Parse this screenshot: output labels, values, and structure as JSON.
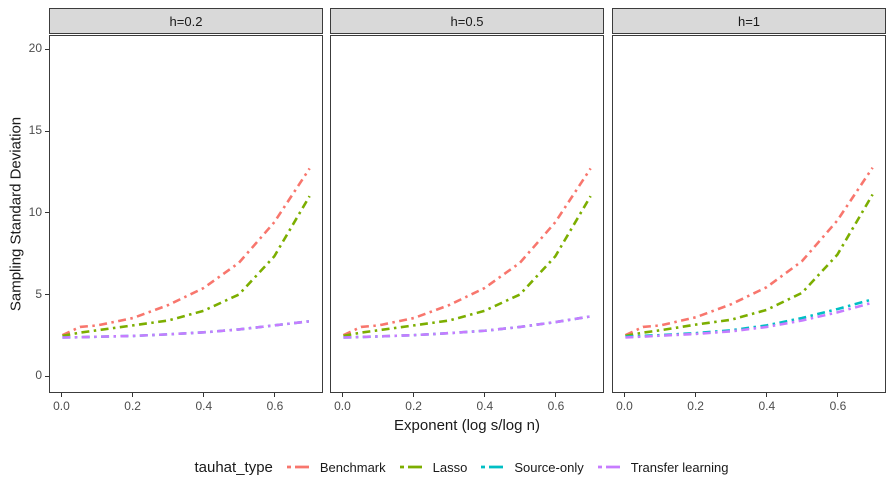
{
  "chart_data": {
    "type": "line",
    "title": "",
    "xlabel": "Exponent (log s/log n)",
    "ylabel": "Sampling Standard Deviation",
    "legend_title": "tauhat_type",
    "legend_position": "bottom",
    "line_style": "dash-dot",
    "grid": false,
    "strip_fill": "#D9D9D9",
    "panel_border": "#3C3C3C",
    "axis_text_color": "#4D4D4D",
    "xlim": [
      -0.035,
      0.735
    ],
    "ylim": [
      -1.05,
      20.85
    ],
    "x_ticks": {
      "values": [
        0,
        0.2,
        0.4,
        0.6
      ],
      "labels": [
        "0.0",
        "0.2",
        "0.4",
        "0.6"
      ]
    },
    "y_ticks": {
      "values": [
        0,
        5,
        10,
        15,
        20
      ],
      "labels": [
        "0",
        "5",
        "10",
        "15",
        "20"
      ]
    },
    "x": [
      0,
      0.05,
      0.1,
      0.2,
      0.3,
      0.4,
      0.5,
      0.6,
      0.7
    ],
    "facets": [
      {
        "label": "h=0.2",
        "series": [
          {
            "name": "Benchmark",
            "color": "#F8766D",
            "values": [
              2.45,
              2.95,
              3.05,
              3.5,
              4.3,
              5.35,
              6.9,
              9.4,
              12.7
            ]
          },
          {
            "name": "Lasso",
            "color": "#7CAE00",
            "values": [
              2.4,
              2.6,
              2.75,
              3.05,
              3.35,
              3.95,
              4.95,
              7.3,
              11.0
            ]
          },
          {
            "name": "Source-only",
            "color": "#00BFC4",
            "values": [
              2.3,
              2.32,
              2.35,
              2.4,
              2.5,
              2.62,
              2.8,
              3.05,
              3.3
            ]
          },
          {
            "name": "Transfer learning",
            "color": "#C77CFF",
            "values": [
              2.3,
              2.32,
              2.35,
              2.4,
              2.5,
              2.62,
              2.8,
              3.05,
              3.3
            ]
          }
        ]
      },
      {
        "label": "h=0.5",
        "series": [
          {
            "name": "Benchmark",
            "color": "#F8766D",
            "values": [
              2.45,
              2.95,
              3.05,
              3.5,
              4.3,
              5.35,
              6.9,
              9.4,
              12.7
            ]
          },
          {
            "name": "Lasso",
            "color": "#7CAE00",
            "values": [
              2.4,
              2.6,
              2.75,
              3.05,
              3.35,
              3.95,
              4.95,
              7.3,
              11.0
            ]
          },
          {
            "name": "Source-only",
            "color": "#00BFC4",
            "values": [
              2.3,
              2.33,
              2.37,
              2.45,
              2.57,
              2.72,
              2.95,
              3.25,
              3.6
            ]
          },
          {
            "name": "Transfer learning",
            "color": "#C77CFF",
            "values": [
              2.3,
              2.33,
              2.37,
              2.45,
              2.57,
              2.72,
              2.95,
              3.25,
              3.6
            ]
          }
        ]
      },
      {
        "label": "h=1",
        "series": [
          {
            "name": "Benchmark",
            "color": "#F8766D",
            "values": [
              2.45,
              2.95,
              3.05,
              3.55,
              4.35,
              5.4,
              7.0,
              9.5,
              12.75
            ]
          },
          {
            "name": "Lasso",
            "color": "#7CAE00",
            "values": [
              2.4,
              2.6,
              2.75,
              3.1,
              3.4,
              4.0,
              5.05,
              7.4,
              11.1
            ]
          },
          {
            "name": "Source-only",
            "color": "#00BFC4",
            "values": [
              2.35,
              2.4,
              2.45,
              2.57,
              2.75,
              3.05,
              3.5,
              4.05,
              4.65
            ]
          },
          {
            "name": "Transfer learning",
            "color": "#C77CFF",
            "values": [
              2.3,
              2.36,
              2.41,
              2.52,
              2.68,
              2.95,
              3.35,
              3.85,
              4.45
            ]
          }
        ]
      }
    ]
  }
}
